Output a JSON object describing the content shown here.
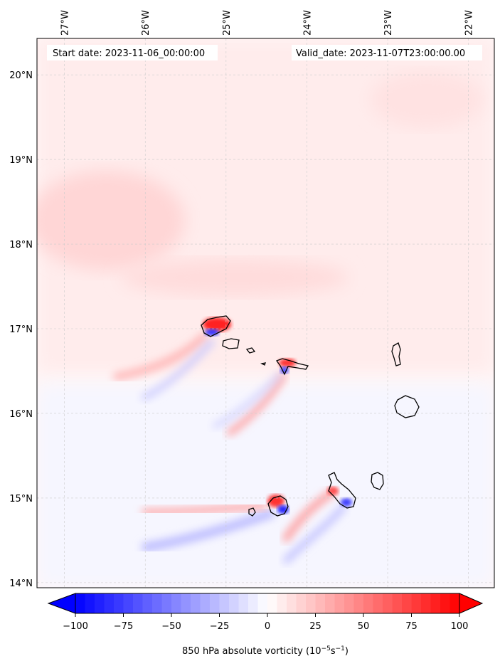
{
  "map": {
    "start_label": "Start date: 2023-11-06_00:00:00",
    "valid_label": "Valid_date: 2023-11-07T23:00:00.00",
    "lon_ticks": [
      "27°W",
      "26°W",
      "25°W",
      "24°W",
      "23°W",
      "22°W"
    ],
    "lat_ticks": [
      "20°N",
      "19°N",
      "18°N",
      "17°N",
      "16°N",
      "15°N",
      "14°N"
    ],
    "lon_values": [
      -27,
      -26,
      -25,
      -24,
      -23,
      -22
    ],
    "lat_values": [
      20,
      19,
      18,
      17,
      16,
      15,
      14
    ],
    "lon_range": [
      -27.34,
      -21.68
    ],
    "lat_range": [
      13.94,
      20.43
    ],
    "islands": [
      "Santo Antão",
      "São Vicente",
      "Santa Luzia",
      "São Nicolau",
      "Sal",
      "Boa Vista",
      "Fogo",
      "Brava",
      "Santiago",
      "Maio"
    ]
  },
  "colorbar": {
    "label": "850 hPa absolute vorticity (10",
    "label_exp1": "−5",
    "label_mid": "s",
    "label_exp2": "−1",
    "label_end": ")",
    "ticks": [
      "−100",
      "−75",
      "−50",
      "−25",
      "0",
      "25",
      "50",
      "75",
      "100"
    ],
    "tick_values": [
      -100,
      -75,
      -50,
      -25,
      0,
      25,
      50,
      75,
      100
    ],
    "range": [
      -100,
      100
    ],
    "extend": "both",
    "colormap": "bwr"
  },
  "colors": {
    "neg": "#0000ff",
    "pos": "#ff0000",
    "mid": "#ffffff",
    "grid": "#cccccc",
    "coast": "#000000"
  }
}
